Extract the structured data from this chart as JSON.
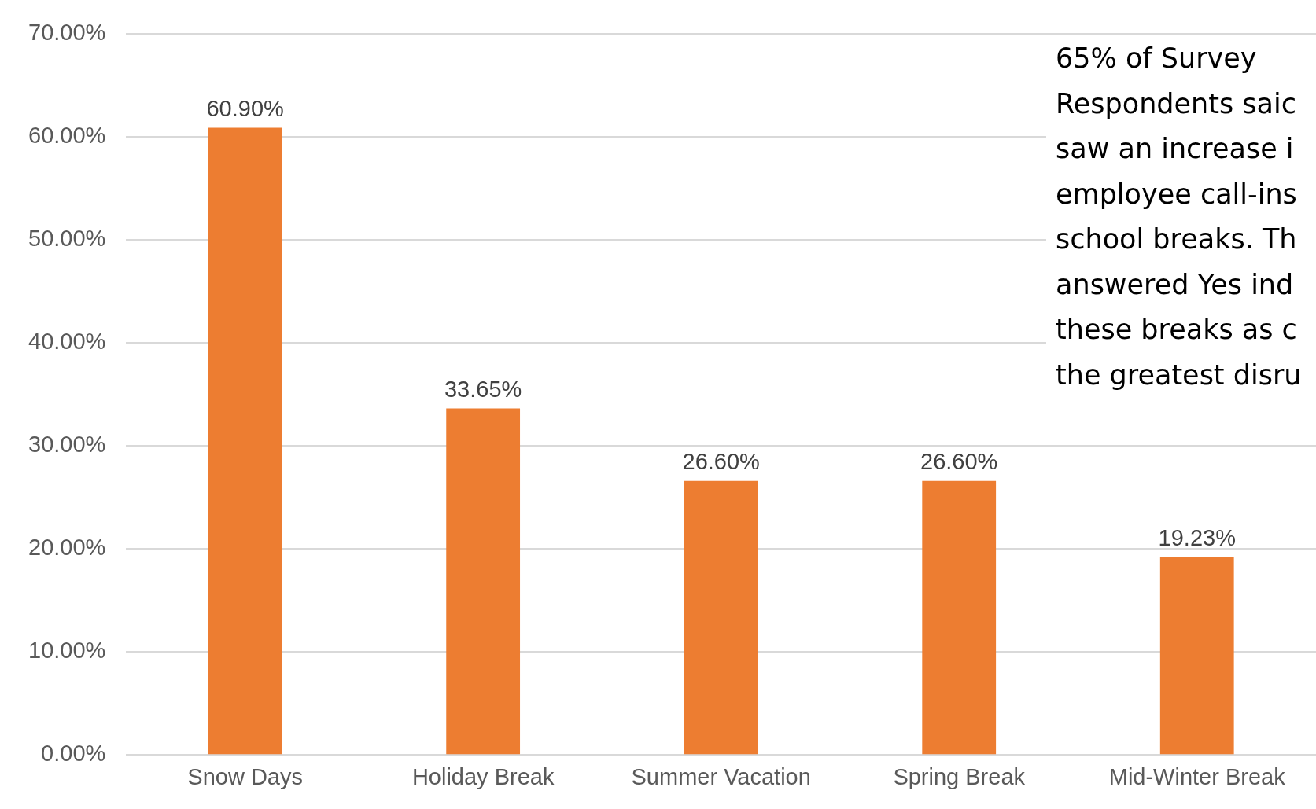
{
  "chart_data": {
    "type": "bar",
    "categories": [
      "Snow Days",
      "Holiday Break",
      "Summer Vacation",
      "Spring Break",
      "Mid-Winter Break"
    ],
    "values": [
      60.9,
      33.65,
      26.6,
      26.6,
      19.23
    ],
    "value_labels": [
      "60.90%",
      "33.65%",
      "26.60%",
      "26.60%",
      "19.23%"
    ],
    "color": "#ed7d31",
    "ylim": [
      0,
      70
    ],
    "yticks": [
      {
        "value": 0,
        "label": "0.00%"
      },
      {
        "value": 10,
        "label": "10.00%"
      },
      {
        "value": 20,
        "label": "20.00%"
      },
      {
        "value": 30,
        "label": "30.00%"
      },
      {
        "value": 40,
        "label": "40.00%"
      },
      {
        "value": 50,
        "label": "50.00%"
      },
      {
        "value": 60,
        "label": "60.00%"
      },
      {
        "value": 70,
        "label": "70.00%"
      }
    ],
    "grid": "y",
    "legend": false,
    "annotations": [
      "65% of Survey\nRespondents saic\nsaw an increase i\nemployee call-ins\nschool breaks. Th\nanswered Yes ind\nthese breaks as c\nthe greatest disru"
    ]
  }
}
